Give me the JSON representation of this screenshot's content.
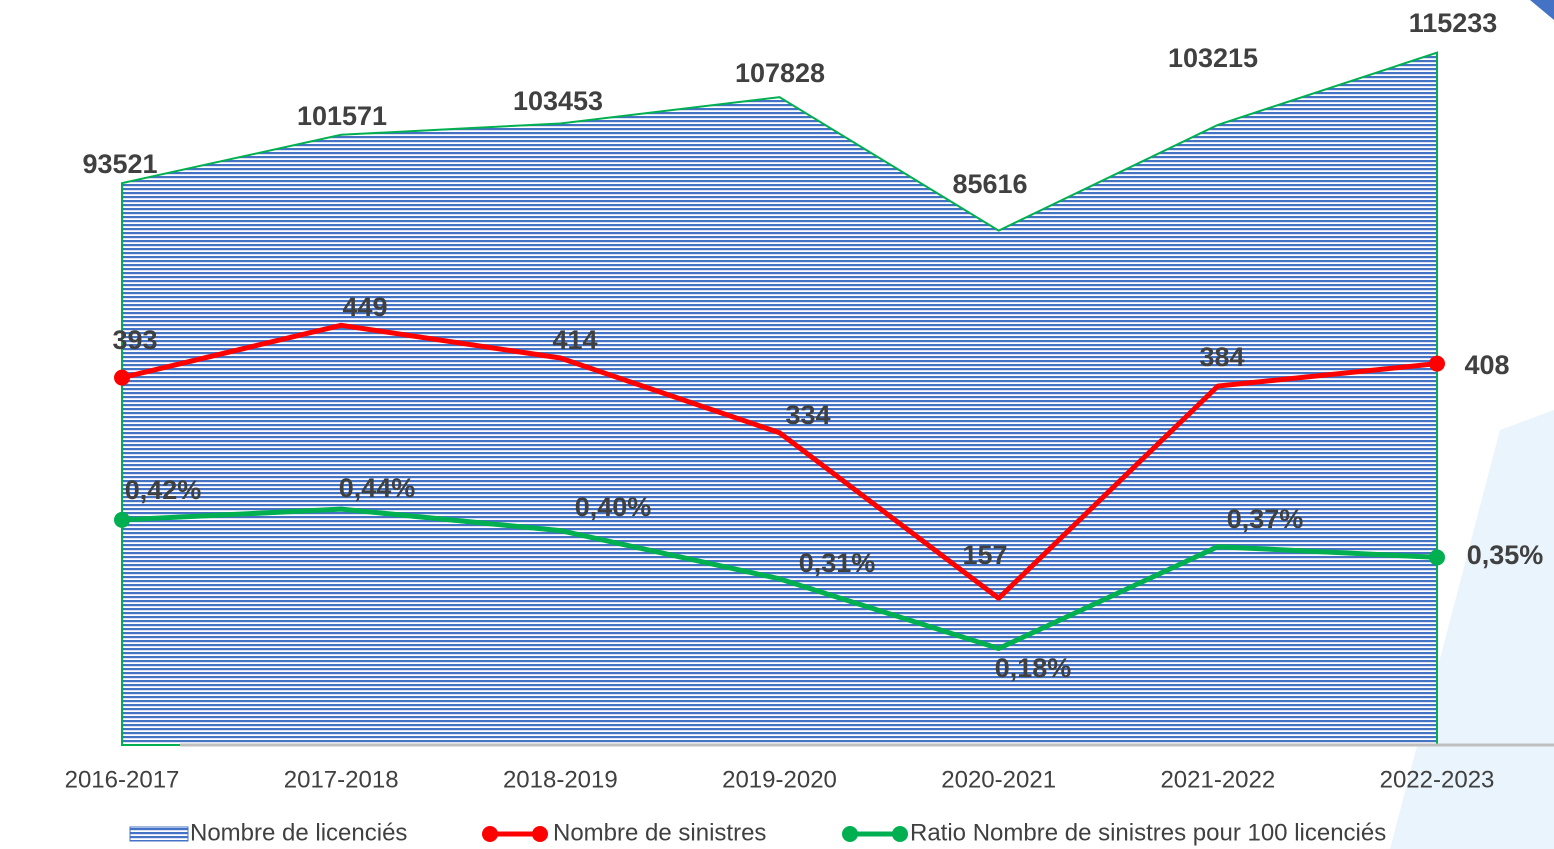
{
  "chart_data": {
    "type": "line",
    "categories": [
      "2016-2017",
      "2017-2018",
      "2018-2019",
      "2019-2020",
      "2020-2021",
      "2021-2022",
      "2022-2023"
    ],
    "series": [
      {
        "name": "Nombre de licenciés",
        "type": "area",
        "color": "#4472c4",
        "values": [
          93521,
          101571,
          103453,
          107828,
          85616,
          103215,
          115233
        ],
        "ylim": [
          0,
          124000
        ]
      },
      {
        "name": "Nombre de sinistres",
        "type": "line",
        "color": "#ff0000",
        "values": [
          393,
          449,
          414,
          334,
          157,
          384,
          408
        ],
        "ylim": [
          0,
          797
        ]
      },
      {
        "name": "Ratio Nombre de sinistres pour 100 licenciés",
        "type": "line",
        "color": "#00b050",
        "values": [
          0.42,
          0.44,
          0.4,
          0.31,
          0.18,
          0.37,
          0.35
        ],
        "value_labels": [
          "0,42%",
          "0,44%",
          "0,40%",
          "0,31%",
          "0,18%",
          "0,37%",
          "0,35%"
        ],
        "ylim": [
          0,
          1.39
        ]
      }
    ]
  }
}
